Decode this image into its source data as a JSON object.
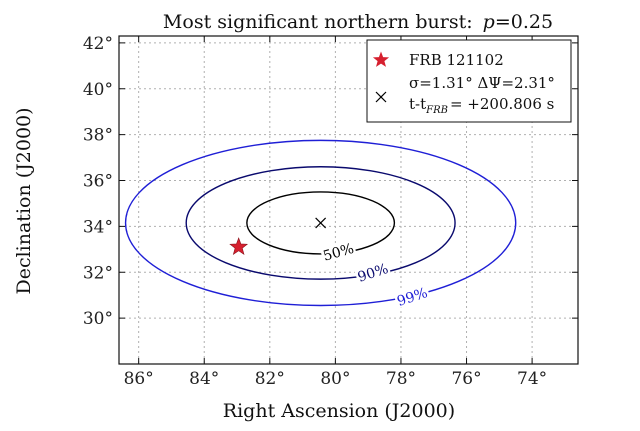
{
  "chart_data": {
    "type": "contour",
    "title": "Most significant northern burst: p = 0.25",
    "title_text": "Most significant northern burst:",
    "title_p_symbol": "p",
    "title_p_value": "=0.25",
    "xlabel": "Right Ascension (J2000)",
    "ylabel": "Declination (J2000)",
    "xlim": [
      86.6,
      72.6
    ],
    "ylim": [
      28.0,
      42.3
    ],
    "x_inverted": true,
    "grid": true,
    "xticks": [
      {
        "value": 86,
        "label": "86°"
      },
      {
        "value": 84,
        "label": "84°"
      },
      {
        "value": 82,
        "label": "82°"
      },
      {
        "value": 80,
        "label": "80°"
      },
      {
        "value": 78,
        "label": "78°"
      },
      {
        "value": 76,
        "label": "76°"
      },
      {
        "value": 74,
        "label": "74°"
      }
    ],
    "yticks": [
      {
        "value": 30,
        "label": "30°"
      },
      {
        "value": 32,
        "label": "32°"
      },
      {
        "value": 34,
        "label": "34°"
      },
      {
        "value": 36,
        "label": "36°"
      },
      {
        "value": 38,
        "label": "38°"
      },
      {
        "value": 40,
        "label": "40°"
      },
      {
        "value": 42,
        "label": "42°"
      }
    ],
    "burst_center": {
      "ra": 80.45,
      "dec": 34.15
    },
    "frb_position": {
      "ra": 82.95,
      "dec": 33.1
    },
    "contours": [
      {
        "level": "50%",
        "label": "50%",
        "ra_halfwidth": 2.25,
        "dec_halfwidth": 1.35,
        "color": "#000000",
        "label_at": {
          "ra": 79.9,
          "dec": 32.85
        },
        "label_angle": -16
      },
      {
        "level": "90%",
        "label": "90%",
        "ra_halfwidth": 4.1,
        "dec_halfwidth": 2.45,
        "color": "#0a0a6e",
        "label_at": {
          "ra": 78.85,
          "dec": 31.95
        },
        "label_angle": -18
      },
      {
        "level": "99%",
        "label": "99%",
        "ra_halfwidth": 5.95,
        "dec_halfwidth": 3.6,
        "color": "#1f1fd6",
        "label_at": {
          "ra": 77.65,
          "dec": 30.9
        },
        "label_angle": -18
      }
    ],
    "legend": {
      "placement": "top-right",
      "frb_label": "FRB 121102",
      "sigma_label": "σ=1.31°  ΔΨ=2.31°",
      "time_main": "t-t",
      "time_sub": "FRB",
      "time_value": "= +200.806 s"
    },
    "colors": {
      "frb_star": "#d6202f",
      "burst_marker": "#000000",
      "grid": "#b0b0b0"
    }
  }
}
